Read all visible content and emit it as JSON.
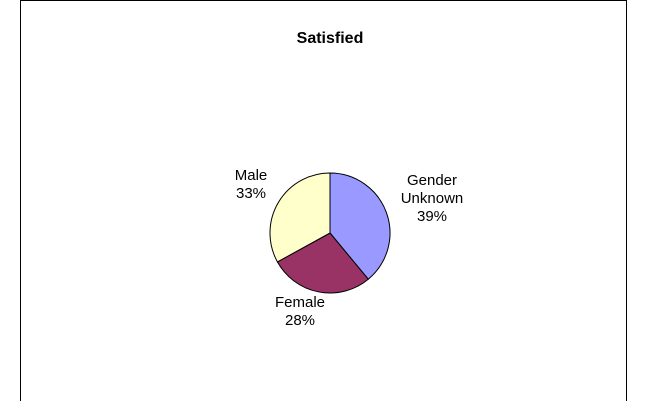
{
  "chart_data": {
    "type": "pie",
    "title": "Satisfied",
    "slices": [
      {
        "label": "Gender Unknown",
        "label_lines": [
          "Gender",
          "Unknown"
        ],
        "value": 39,
        "value_label": "39%",
        "color": "#9999ff"
      },
      {
        "label": "Female",
        "label_lines": [
          "Female"
        ],
        "value": 28,
        "value_label": "28%",
        "color": "#993366"
      },
      {
        "label": "Male",
        "label_lines": [
          "Male"
        ],
        "value": 33,
        "value_label": "33%",
        "color": "#ffffcc"
      }
    ],
    "start_angle_deg": 0,
    "direction": "clockwise",
    "slice_outline_color": "#000000"
  }
}
